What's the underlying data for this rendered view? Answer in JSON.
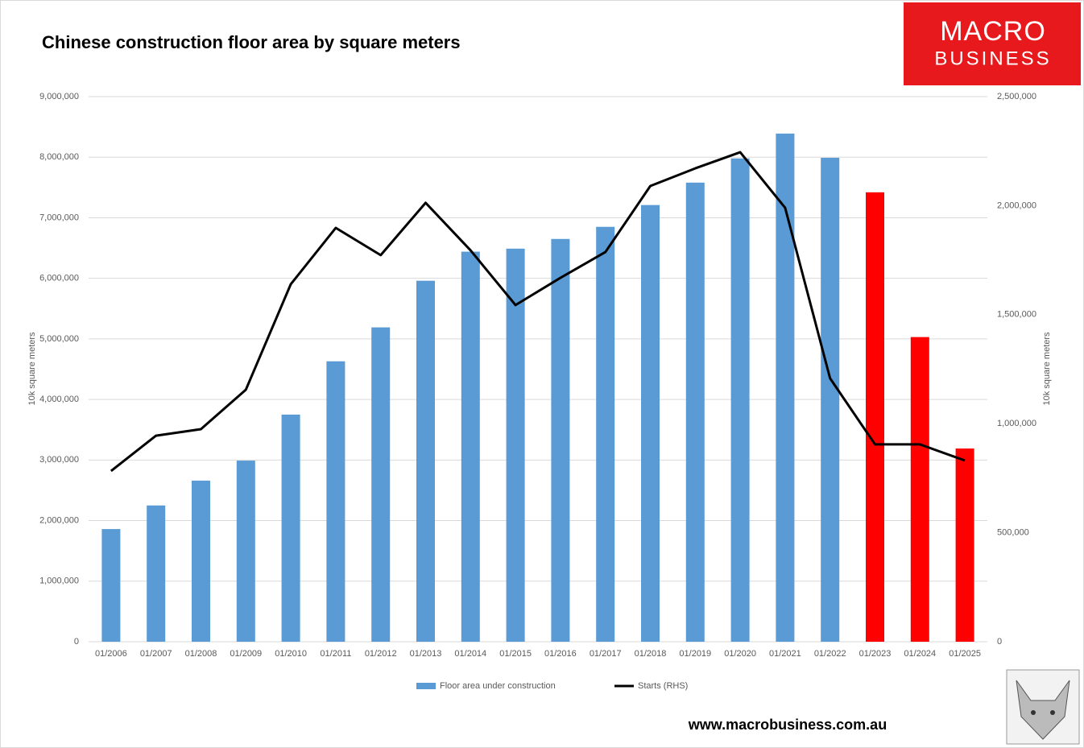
{
  "chart_data": {
    "type": "bar-line",
    "title": "Chinese construction floor area by square meters",
    "y_label": "10k square meters",
    "y2_label": "10k square meters",
    "categories": [
      "01/2006",
      "01/2007",
      "01/2008",
      "01/2009",
      "01/2010",
      "01/2011",
      "01/2012",
      "01/2013",
      "01/2014",
      "01/2015",
      "01/2016",
      "01/2017",
      "01/2018",
      "01/2019",
      "01/2020",
      "01/2021",
      "01/2022",
      "01/2023",
      "01/2024",
      "01/2025"
    ],
    "series": [
      {
        "name": "Floor area under construction",
        "type": "bar",
        "color": "#5b9bd5",
        "colors": [
          "#5b9bd5",
          "#5b9bd5",
          "#5b9bd5",
          "#5b9bd5",
          "#5b9bd5",
          "#5b9bd5",
          "#5b9bd5",
          "#5b9bd5",
          "#5b9bd5",
          "#5b9bd5",
          "#5b9bd5",
          "#5b9bd5",
          "#5b9bd5",
          "#5b9bd5",
          "#5b9bd5",
          "#5b9bd5",
          "#5b9bd5",
          "#ff0000",
          "#ff0000",
          "#ff0000"
        ],
        "values": [
          1860000,
          2250000,
          2660000,
          2990000,
          3750000,
          4630000,
          5190000,
          5960000,
          6440000,
          6490000,
          6650000,
          6850000,
          7210000,
          7580000,
          7980000,
          8390000,
          7990000,
          7420000,
          5030000,
          3190000
        ]
      },
      {
        "name": "Starts (RHS)",
        "type": "line",
        "axis": "y2",
        "color": "#000000",
        "values": [
          783000,
          945000,
          975000,
          1156000,
          1640000,
          1898000,
          1773000,
          2013000,
          1795000,
          1544000,
          1669000,
          1787000,
          2090000,
          2171000,
          2245000,
          1990000,
          1208000,
          905000,
          905000,
          831000
        ]
      }
    ],
    "ylim": [
      0,
      9000000
    ],
    "yticks": [
      0,
      {
        "value": 1000000,
        "label": "1,000,000"
      },
      {
        "value": 2000000,
        "label": "2,000,000"
      },
      {
        "value": 3000000,
        "label": "3,000,000"
      },
      {
        "value": 4000000,
        "label": "4,000,000"
      },
      {
        "value": 5000000,
        "label": "5,000,000"
      },
      {
        "value": 6000000,
        "label": "6,000,000"
      },
      {
        "value": 7000000,
        "label": "7,000,000"
      },
      {
        "value": 8000000,
        "label": "8,000,000"
      },
      {
        "value": 9000000,
        "label": "9,000,000"
      }
    ],
    "y2lim": [
      0,
      2500000
    ],
    "y2ticks": [
      0,
      {
        "value": 500000,
        "label": "500,000"
      },
      {
        "value": 1000000,
        "label": "1,000,000"
      },
      {
        "value": 1500000,
        "label": "1,500,000"
      },
      {
        "value": 2000000,
        "label": "2,000,000"
      },
      {
        "value": 2500000,
        "label": "2,500,000"
      }
    ],
    "grid": true,
    "legend": "bottom"
  },
  "logo": {
    "line1": "MACRO",
    "line2": "BUSINESS"
  },
  "website": "www.macrobusiness.com.au"
}
